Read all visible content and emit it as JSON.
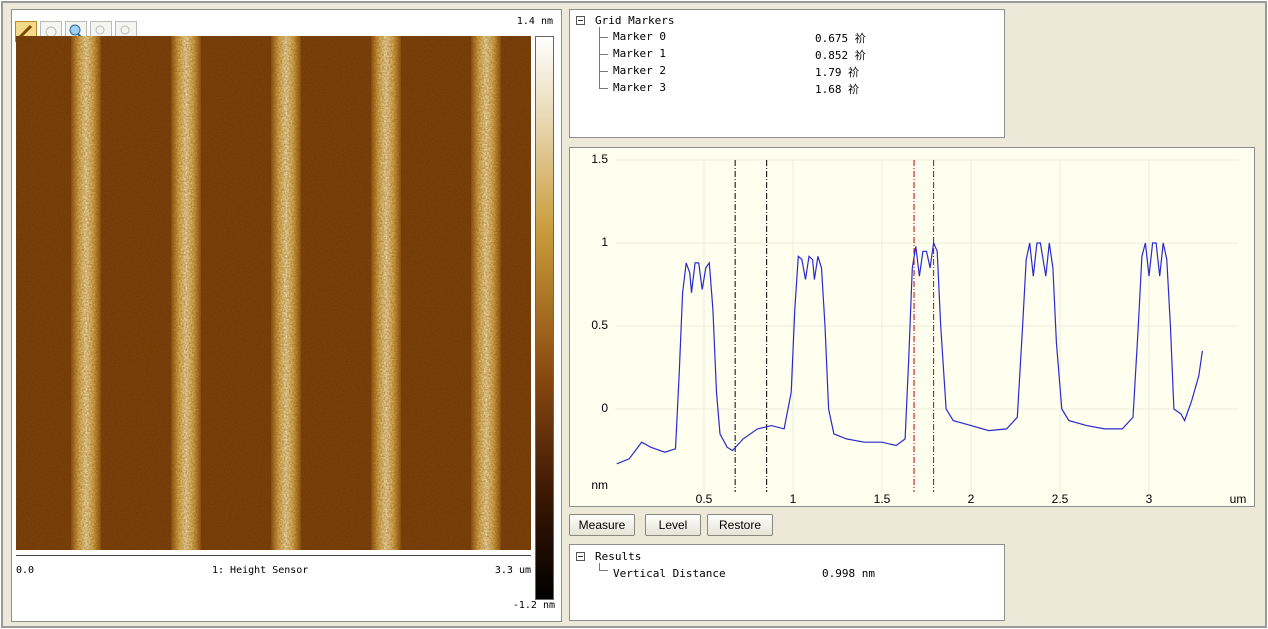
{
  "image": {
    "scale_max": "1.4 nm",
    "scale_min": "-1.2 nm",
    "x_start": "0.0",
    "channel": "1: Height Sensor",
    "x_end": "3.3 um"
  },
  "grid_markers": {
    "title": "Grid Markers",
    "items": [
      {
        "name": "Marker 0",
        "value": 0.675,
        "label": "0.675 祄",
        "color": "#000000"
      },
      {
        "name": "Marker 1",
        "value": 0.852,
        "label": "0.852 祄",
        "color": "#000000"
      },
      {
        "name": "Marker 2",
        "value": 1.79,
        "label": "1.79 祄",
        "color": "#c00000"
      },
      {
        "name": "Marker 3",
        "value": 1.68,
        "label": "1.68 祄",
        "color": "#c00000"
      }
    ]
  },
  "chart_data": {
    "type": "line",
    "x_label": "um",
    "y_label": "nm",
    "xlim": [
      0,
      3.5
    ],
    "ylim": [
      -0.5,
      1.5
    ],
    "xticks": [
      0.5,
      1,
      1.5,
      2,
      2.5,
      3
    ],
    "yticks": [
      0,
      0.5,
      1,
      1.5
    ],
    "grid": true,
    "x": [
      0.01,
      0.08,
      0.15,
      0.2,
      0.28,
      0.34,
      0.36,
      0.38,
      0.4,
      0.42,
      0.43,
      0.45,
      0.47,
      0.49,
      0.51,
      0.53,
      0.55,
      0.57,
      0.59,
      0.63,
      0.66,
      0.72,
      0.8,
      0.88,
      0.95,
      0.99,
      1.01,
      1.03,
      1.05,
      1.07,
      1.09,
      1.11,
      1.12,
      1.14,
      1.16,
      1.18,
      1.2,
      1.23,
      1.3,
      1.4,
      1.5,
      1.58,
      1.63,
      1.65,
      1.67,
      1.69,
      1.71,
      1.73,
      1.75,
      1.77,
      1.79,
      1.81,
      1.83,
      1.86,
      1.9,
      2.0,
      2.1,
      2.2,
      2.26,
      2.29,
      2.31,
      2.33,
      2.35,
      2.37,
      2.39,
      2.42,
      2.44,
      2.46,
      2.48,
      2.51,
      2.55,
      2.65,
      2.75,
      2.85,
      2.91,
      2.94,
      2.96,
      2.98,
      3.0,
      3.02,
      3.04,
      3.06,
      3.08,
      3.1,
      3.12,
      3.14,
      3.18,
      3.2,
      3.24,
      3.28,
      3.3
    ],
    "series": [
      {
        "color": "#2a2ad0",
        "values": [
          -0.33,
          -0.3,
          -0.2,
          -0.23,
          -0.26,
          -0.24,
          0.2,
          0.7,
          0.88,
          0.82,
          0.7,
          0.88,
          0.88,
          0.72,
          0.85,
          0.88,
          0.6,
          0.1,
          -0.15,
          -0.23,
          -0.25,
          -0.18,
          -0.12,
          -0.1,
          -0.12,
          0.1,
          0.6,
          0.92,
          0.9,
          0.78,
          0.92,
          0.9,
          0.78,
          0.92,
          0.85,
          0.5,
          0.0,
          -0.15,
          -0.18,
          -0.2,
          -0.2,
          -0.22,
          -0.18,
          0.3,
          0.85,
          0.98,
          0.8,
          0.95,
          0.95,
          0.85,
          1.0,
          0.95,
          0.5,
          0.0,
          -0.07,
          -0.1,
          -0.13,
          -0.12,
          -0.05,
          0.5,
          0.9,
          1.0,
          0.8,
          1.0,
          1.0,
          0.8,
          1.0,
          0.85,
          0.4,
          0.0,
          -0.07,
          -0.1,
          -0.12,
          -0.12,
          -0.05,
          0.5,
          0.92,
          1.0,
          0.8,
          1.0,
          1.0,
          0.8,
          1.0,
          0.9,
          0.5,
          0.0,
          -0.03,
          -0.07,
          0.05,
          0.2,
          0.35
        ]
      }
    ]
  },
  "buttons": [
    "Measure",
    "Level",
    "Restore"
  ],
  "results": {
    "title": "Results",
    "items": [
      {
        "name": "Vertical Distance",
        "value": "0.998 nm"
      }
    ]
  }
}
